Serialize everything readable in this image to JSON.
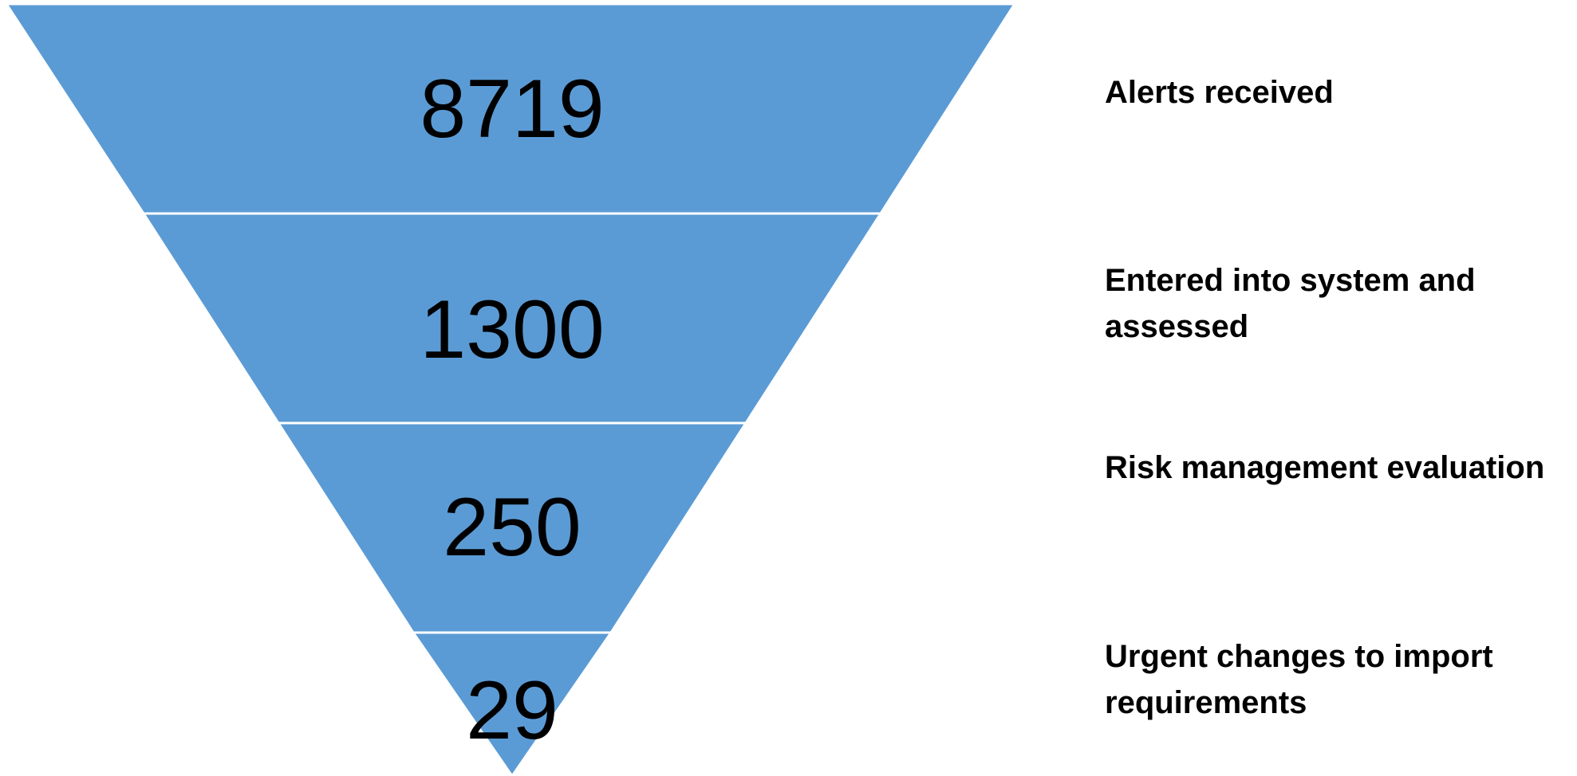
{
  "funnel": {
    "color": "#5b9bd5",
    "stages": [
      {
        "value": "8719",
        "label": "Alerts received"
      },
      {
        "value": "1300",
        "label": "Entered into system and assessed"
      },
      {
        "value": "250",
        "label": "Risk management evaluation"
      },
      {
        "value": "29",
        "label": "Urgent changes to import requirements"
      }
    ]
  }
}
